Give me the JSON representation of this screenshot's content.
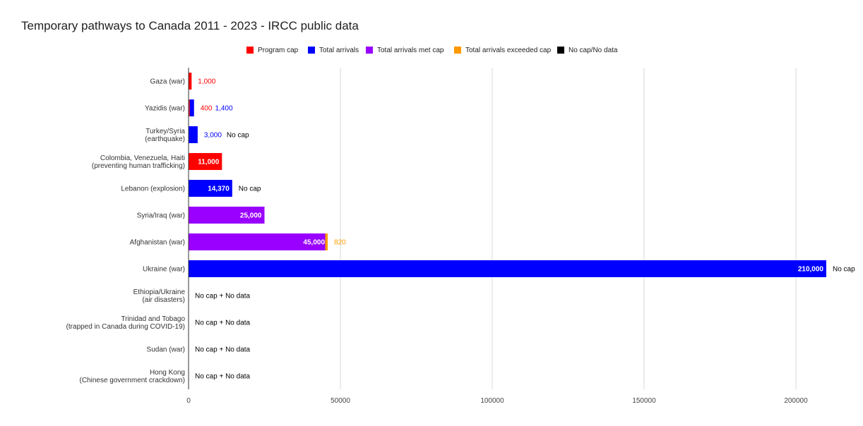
{
  "chart_data": {
    "type": "bar",
    "orientation": "horizontal",
    "stacked": true,
    "title": "Temporary pathways to Canada 2011 - 2023 - IRCC public data",
    "xlabel": "",
    "ylabel": "",
    "xlim": [
      0,
      215000
    ],
    "x_ticks": [
      "0",
      "50000",
      "100000",
      "150000",
      "200000"
    ],
    "grid": true,
    "legend_position": "top",
    "legend": [
      {
        "name": "Program cap",
        "color": "#ff0000"
      },
      {
        "name": "Total arrivals",
        "color": "#0000ff"
      },
      {
        "name": "Total arrivals met cap",
        "color": "#9900ff"
      },
      {
        "name": "Total arrivals exceeded cap",
        "color": "#ff9900"
      },
      {
        "name": "No cap/No data",
        "color": "#000000"
      }
    ],
    "categories": [
      {
        "label": [
          "Gaza (war)"
        ],
        "segments": [
          {
            "series": "Program cap",
            "value": 1000
          }
        ],
        "labels": [
          {
            "text": "1,000",
            "color": "#ff0000",
            "inside": false
          }
        ]
      },
      {
        "label": [
          "Yazidis (war)"
        ],
        "segments": [
          {
            "series": "Program cap",
            "value": 400
          },
          {
            "series": "Total arrivals",
            "value": 1400
          }
        ],
        "labels": [
          {
            "text": "400",
            "color": "#ff0000",
            "inside": false
          },
          {
            "text": "1,400",
            "color": "#0000ff",
            "inside": false
          }
        ]
      },
      {
        "label": [
          "Turkey/Syria",
          "(earthquake)"
        ],
        "segments": [
          {
            "series": "Total arrivals",
            "value": 3000
          }
        ],
        "labels": [
          {
            "text": "3,000",
            "color": "#0000ff",
            "inside": false
          },
          {
            "text": "No cap",
            "color": "#000000",
            "inside": false
          }
        ]
      },
      {
        "label": [
          "Colombia, Venezuela, Haiti",
          "(preventing human trafficking)"
        ],
        "segments": [
          {
            "series": "Program cap",
            "value": 11000
          }
        ],
        "labels": [
          {
            "text": "11,000",
            "color": "#ffffff",
            "inside": true
          }
        ]
      },
      {
        "label": [
          "Lebanon (explosion)"
        ],
        "segments": [
          {
            "series": "Total arrivals",
            "value": 14370
          }
        ],
        "labels": [
          {
            "text": "14,370",
            "color": "#ffffff",
            "inside": true
          },
          {
            "text": "No cap",
            "color": "#000000",
            "inside": false
          }
        ]
      },
      {
        "label": [
          "Syria/Iraq (war)"
        ],
        "segments": [
          {
            "series": "Total arrivals met cap",
            "value": 25000
          }
        ],
        "labels": [
          {
            "text": "25,000",
            "color": "#ffffff",
            "inside": true
          }
        ]
      },
      {
        "label": [
          "Afghanistan (war)"
        ],
        "segments": [
          {
            "series": "Total arrivals met cap",
            "value": 45000
          },
          {
            "series": "Total arrivals exceeded cap",
            "value": 820
          }
        ],
        "labels": [
          {
            "text": "45,000",
            "color": "#ffffff",
            "inside": true
          },
          {
            "text": "820",
            "color": "#ff9900",
            "inside": false
          }
        ]
      },
      {
        "label": [
          "Ukraine (war)"
        ],
        "segments": [
          {
            "series": "Total arrivals",
            "value": 210000
          }
        ],
        "labels": [
          {
            "text": "210,000",
            "color": "#ffffff",
            "inside": true
          },
          {
            "text": "No cap",
            "color": "#000000",
            "inside": false
          }
        ]
      },
      {
        "label": [
          "Ethiopia/Ukraine",
          "(air disasters)"
        ],
        "segments": [],
        "labels": [
          {
            "text": "No cap + No data",
            "color": "#000000",
            "inside": false
          }
        ]
      },
      {
        "label": [
          "Trinidad and Tobago",
          "(trapped in Canada during COVID-19)"
        ],
        "segments": [],
        "labels": [
          {
            "text": "No cap + No data",
            "color": "#000000",
            "inside": false
          }
        ]
      },
      {
        "label": [
          "Sudan (war)"
        ],
        "segments": [],
        "labels": [
          {
            "text": "No cap + No data",
            "color": "#000000",
            "inside": false
          }
        ]
      },
      {
        "label": [
          "Hong Kong",
          "(Chinese government crackdown)"
        ],
        "segments": [],
        "labels": [
          {
            "text": "No cap + No data",
            "color": "#000000",
            "inside": false
          }
        ]
      }
    ]
  }
}
